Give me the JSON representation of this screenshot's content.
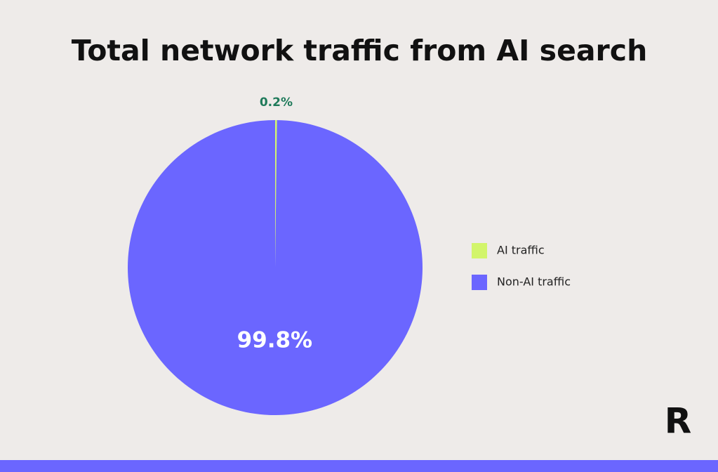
{
  "chart_data": {
    "type": "pie",
    "title": "Total network traffic from AI search",
    "categories": [
      "AI traffic",
      "Non-AI traffic"
    ],
    "values": [
      0.2,
      99.8
    ],
    "value_labels": [
      "0.2%",
      "99.8%"
    ],
    "colors": [
      "#d2f56b",
      "#6b66ff"
    ],
    "legend": "right"
  },
  "logo_text": "R"
}
